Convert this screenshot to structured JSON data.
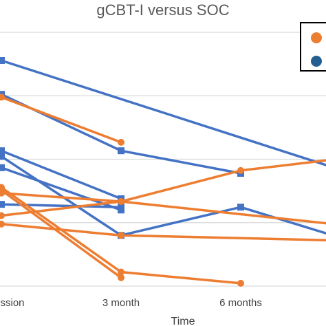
{
  "chart_data": {
    "type": "line",
    "title": "gCBT-I versus SOC",
    "xlabel": "Time",
    "ylabel": "",
    "categories": [
      "ssion",
      "3 month",
      "6 months",
      ""
    ],
    "ylim": [
      0,
      9
    ],
    "grid": true,
    "legend": {
      "placement": "top-right",
      "entries": [
        {
          "color": "#ED7D31"
        },
        {
          "color": "#255E91"
        }
      ]
    },
    "colors": {
      "orange": "#ED7D31",
      "blue": "#4472C4",
      "legend_blue": "#255E91",
      "grid": "#d9d9d9"
    },
    "series": [
      {
        "group": "blue",
        "marker": "square",
        "x": [
          0,
          1,
          2
        ],
        "y": [
          6.8,
          4.8,
          4.0
        ]
      },
      {
        "group": "blue",
        "marker": "square",
        "x": [
          0,
          3
        ],
        "y": [
          8.0,
          3.9
        ]
      },
      {
        "group": "blue",
        "marker": "square",
        "x": [
          0,
          1,
          2,
          3
        ],
        "y": [
          4.6,
          1.8,
          2.8,
          1.5
        ]
      },
      {
        "group": "blue",
        "marker": "square",
        "x": [
          0,
          1
        ],
        "y": [
          4.2,
          2.7
        ]
      },
      {
        "group": "blue",
        "marker": "square",
        "x": [
          0,
          1
        ],
        "y": [
          4.8,
          3.1
        ]
      },
      {
        "group": "blue",
        "marker": "square",
        "x": [
          0,
          1
        ],
        "y": [
          2.9,
          2.8
        ]
      },
      {
        "group": "orange",
        "marker": "circle",
        "x": [
          0,
          1
        ],
        "y": [
          6.7,
          5.1
        ]
      },
      {
        "group": "orange",
        "marker": "circle",
        "x": [
          0,
          1,
          2,
          3
        ],
        "y": [
          2.5,
          3.0,
          4.1,
          4.6
        ]
      },
      {
        "group": "orange",
        "marker": "circle",
        "x": [
          0,
          1,
          3
        ],
        "y": [
          3.3,
          3.0,
          2.1
        ]
      },
      {
        "group": "orange",
        "marker": "circle",
        "x": [
          0,
          1,
          3
        ],
        "y": [
          2.2,
          1.8,
          1.6
        ]
      },
      {
        "group": "orange",
        "marker": "circle",
        "x": [
          0,
          1,
          2
        ],
        "y": [
          3.5,
          0.5,
          0.1
        ]
      },
      {
        "group": "orange",
        "marker": "circle",
        "x": [
          0,
          1
        ],
        "y": [
          3.4,
          0.3
        ]
      }
    ]
  }
}
